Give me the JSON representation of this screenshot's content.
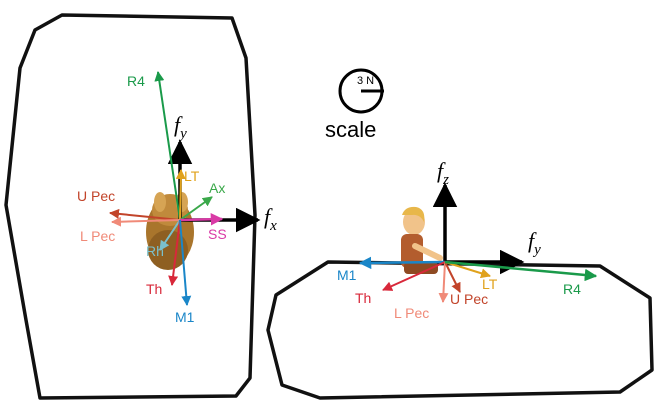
{
  "scale": {
    "label": "scale",
    "value": "3 N"
  },
  "top_view": {
    "axes": {
      "fx": "f",
      "fx_sub": "x",
      "fy": "f",
      "fy_sub": "y"
    },
    "forces": [
      {
        "id": "r4",
        "label": "R4",
        "color": "#1a9a4a"
      },
      {
        "id": "lt",
        "label": "LT",
        "color": "#e0a21c"
      },
      {
        "id": "ax",
        "label": "Ax",
        "color": "#3aa84a"
      },
      {
        "id": "upec",
        "label": "U Pec",
        "color": "#c2442a"
      },
      {
        "id": "lpec",
        "label": "L Pec",
        "color": "#f08a78"
      },
      {
        "id": "ss",
        "label": "SS",
        "color": "#d93aa6"
      },
      {
        "id": "rh",
        "label": "Rh",
        "color": "#7ac0cc"
      },
      {
        "id": "th",
        "label": "Th",
        "color": "#d8283a"
      },
      {
        "id": "m1",
        "label": "M1",
        "color": "#1a86c8"
      }
    ]
  },
  "side_view": {
    "axes": {
      "fz": "f",
      "fz_sub": "z",
      "fy": "f",
      "fy_sub": "y"
    },
    "forces": [
      {
        "id": "m1",
        "label": "M1",
        "color": "#1a86c8"
      },
      {
        "id": "th",
        "label": "Th",
        "color": "#d8283a"
      },
      {
        "id": "lpec",
        "label": "L Pec",
        "color": "#f08a78"
      },
      {
        "id": "upec",
        "label": "U Pec",
        "color": "#c2442a"
      },
      {
        "id": "lt",
        "label": "LT",
        "color": "#e0a21c"
      },
      {
        "id": "r4",
        "label": "R4",
        "color": "#1a9a4a"
      }
    ]
  }
}
